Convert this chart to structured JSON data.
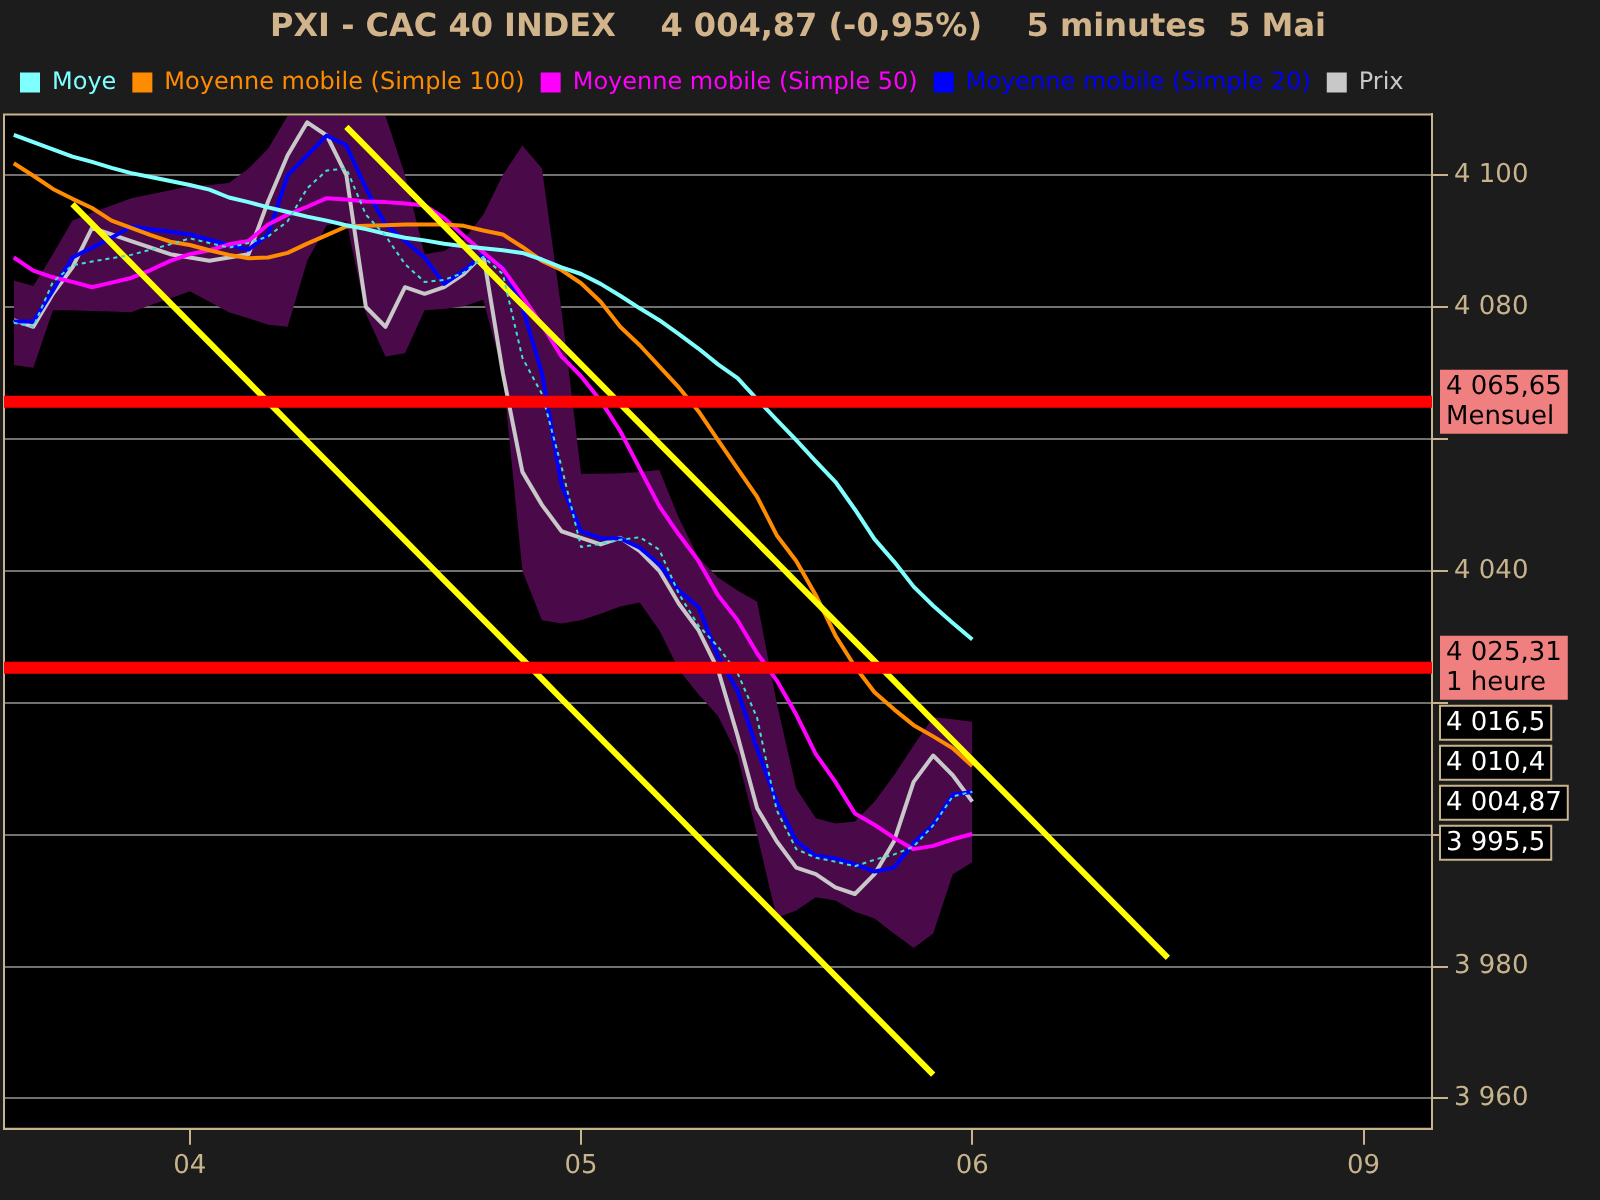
{
  "chart_data": {
    "type": "line",
    "title": "PXI - CAC 40 INDEX    4 004,87 (-0,95%)    5 minutes  5 Mai",
    "categories": [
      null,
      null,
      null,
      null,
      null,
      null,
      null,
      null,
      null,
      "04",
      null,
      null,
      null,
      null,
      null,
      null,
      null,
      null,
      null,
      null,
      null,
      null,
      null,
      null,
      null,
      null,
      null,
      null,
      null,
      "05",
      null,
      null,
      null,
      null,
      null,
      null,
      null,
      null,
      null,
      null,
      null,
      null,
      null,
      null,
      null,
      null,
      null,
      null,
      null,
      "06",
      null,
      null,
      null,
      null,
      null,
      null,
      null,
      null,
      null,
      null,
      null,
      null,
      null,
      null,
      null,
      null,
      null,
      null,
      null,
      "09",
      null,
      null,
      null
    ],
    "ylim": [
      3955.4,
      4109.2
    ],
    "yticks": [
      {
        "value": 3960,
        "label": "3 960"
      },
      {
        "value": 3980,
        "label": "3 980"
      },
      {
        "value": 4000,
        "label": null
      },
      {
        "value": 4020,
        "label": null
      },
      {
        "value": 4040,
        "label": "4 040"
      },
      {
        "value": 4060,
        "label": null
      },
      {
        "value": 4080,
        "label": "4 080"
      },
      {
        "value": 4100,
        "label": "4 100"
      }
    ],
    "grid": "y",
    "legend": "top left",
    "marker": "none",
    "series": [
      {
        "color": "#40e0d0",
        "line_style": "dashed",
        "values": [
          4077.6,
          4077,
          4083.8,
          4086.3,
          4086.9,
          4087.4,
          4087.9,
          4088.7,
          4089.5,
          4090.4,
          4089.7,
          4089,
          4089.7,
          4090.7,
          4093,
          4098,
          4100.7,
          4101,
          4094,
          4090.8,
          4086.5,
          4083.8,
          4084.1,
          4085.2,
          4087.6,
          4085,
          4072.3,
          4066.8,
          4055.8,
          4043.6,
          4044.1,
          4044.7,
          4045.1,
          4043.2,
          4036.5,
          4031.7,
          4028.5,
          4024.5,
          4017.7,
          4003.7,
          3997.8,
          3996.5,
          3995.9,
          3995.2,
          3996.2,
          3997,
          3998.2,
          4001.4,
          4005.8,
          4006.5,
          null,
          null,
          null,
          null,
          null,
          null,
          null,
          null,
          null,
          null,
          null,
          null,
          null,
          null,
          null,
          null,
          null,
          null,
          null,
          null,
          null,
          null,
          null
        ],
        "upper": [
          4084,
          4083.2,
          4088,
          4093.1,
          4094.3,
          4095.4,
          4096.5,
          4097.1,
          4097.7,
          4098.3,
          4098.5,
          4098.8,
          4101,
          4104,
          4109,
          4109,
          4109,
          4109,
          4109,
          4109,
          4100,
          4088,
          4088.5,
          4090.2,
          4094,
          4100,
          4104.5,
          4101,
          4079.5,
          4054.7,
          4054.7,
          4054.8,
          4055,
          4055.3,
          4048,
          4042,
          4039,
          4037,
          4035.3,
          4020,
          4007,
          4002.5,
          4001.7,
          4002,
          4005,
          4009,
          4013.5,
          4017.8,
          4017.5,
          4017.1,
          null,
          null,
          null,
          null,
          null,
          null,
          null,
          null,
          null,
          null,
          null,
          null,
          null,
          null,
          null,
          null,
          null,
          null,
          null,
          null,
          null,
          null,
          null
        ],
        "lower": [
          4071.2,
          4070.8,
          4079.5,
          4079.5,
          4079.4,
          4079.3,
          4079.2,
          4080.3,
          4081.3,
          4082.4,
          4080.8,
          4079.2,
          4078.3,
          4077.3,
          4077,
          4087,
          4092.4,
          4093,
          4079,
          4072.5,
          4073,
          4079.5,
          4079.7,
          4080.1,
          4081.1,
          4070,
          4040,
          4032.5,
          4032,
          4032.5,
          4033.5,
          4034.6,
          4035.2,
          4031,
          4025,
          4021.3,
          4018,
          4012,
          4000,
          3987.4,
          3988.5,
          3990.5,
          3990,
          3988.3,
          3987.3,
          3985,
          3982.8,
          3985,
          3994,
          3995.8,
          null,
          null,
          null,
          null,
          null,
          null,
          null,
          null,
          null,
          null,
          null,
          null,
          null,
          null,
          null,
          null,
          null,
          null,
          null,
          null,
          null,
          null,
          null
        ]
      },
      {
        "name": "Prix",
        "color": "#c8c8c8",
        "values": [
          4078,
          4077,
          4082,
          4086,
          4092,
          4091,
          4090,
          4089,
          4088,
          4087.5,
          4087,
          4087.5,
          4088,
          4096,
          4103,
          4108,
          4106,
          4100,
          4080,
          4077,
          4083,
          4082,
          4083,
          4085,
          4088,
          4070,
          4055,
          4050,
          4046,
          4045,
          4044,
          4045,
          4043,
          4040,
          4035,
          4031,
          4025,
          4015,
          4004,
          3999,
          3995,
          3994,
          3992,
          3991,
          3994,
          3999,
          4008,
          4012,
          4009,
          4005,
          null,
          null,
          null,
          null,
          null,
          null,
          null,
          null,
          null,
          null,
          null,
          null,
          null,
          null,
          null,
          null,
          null,
          null,
          null,
          null,
          null,
          null,
          null
        ]
      },
      {
        "name": "Moyenne mobile (Simple 20)",
        "color": "#0000ff",
        "values": [
          4077.8,
          4077.8,
          4082.5,
          4087.5,
          4089,
          4090.5,
          4092.2,
          4091.8,
          4091.4,
          4091,
          4090.2,
          4089.4,
          4088.7,
          4091,
          4100,
          4103,
          4106,
          4104.5,
          4098,
          4092.5,
          4090,
          4087.5,
          4083.5,
          4085.5,
          4088,
          4086,
          4080,
          4070,
          4053,
          4046,
          4044.9,
          4044.9,
          4043.5,
          4041,
          4037,
          4034.5,
          4027,
          4021.8,
          4013,
          4005,
          3999,
          3996.8,
          3996.4,
          3995.5,
          3994.4,
          3995,
          3998.7,
          4001.5,
          4006,
          4006.5,
          null,
          null,
          null,
          null,
          null,
          null,
          null,
          null,
          null,
          null,
          null,
          null,
          null,
          null,
          null,
          null,
          null,
          null,
          null,
          null,
          null,
          null,
          null
        ]
      },
      {
        "name": "Moyenne mobile (Simple 50)",
        "color": "#ff00ff",
        "values": [
          4087.5,
          4085.5,
          4084.5,
          4083.8,
          4083,
          4083.7,
          4084.4,
          4085.6,
          4087,
          4088,
          4088.6,
          4089.5,
          4090,
          4092.5,
          4094,
          4095.2,
          4096.5,
          4096.3,
          4096,
          4095.9,
          4095.7,
          4095.4,
          4093.5,
          4090.8,
          4088.3,
          4085.8,
          4081.6,
          4077.3,
          4072.5,
          4069.5,
          4065.8,
          4061.2,
          4055.5,
          4049.8,
          4045.5,
          4041.5,
          4036.3,
          4032.5,
          4027.5,
          4023.4,
          4018.2,
          4012.2,
          4008,
          4003.2,
          4001.5,
          3999.5,
          3997.8,
          3998.3,
          3999.3,
          4000.1,
          null,
          null,
          null,
          null,
          null,
          null,
          null,
          null,
          null,
          null,
          null,
          null,
          null,
          null,
          null,
          null,
          null,
          null,
          null,
          null,
          null,
          null,
          null
        ]
      },
      {
        "name": "Moyenne mobile (Simple 100)",
        "color": "#ff8c00",
        "values": [
          4101.8,
          4099.9,
          4097.9,
          4096.4,
          4095,
          4093.1,
          4092,
          4090.9,
          4089.9,
          4089.4,
          4088.6,
          4087.9,
          4087.4,
          4087.5,
          4088.2,
          4089.6,
          4090.9,
          4092.2,
          4092.3,
          4092.4,
          4092.5,
          4092.5,
          4092.5,
          4092.3,
          4091.6,
          4091,
          4089.1,
          4087,
          4085.6,
          4083.6,
          4080.8,
          4077,
          4074.2,
          4071,
          4067.8,
          4064.2,
          4059.8,
          4055.5,
          4051.2,
          4045.4,
          4041.5,
          4036.3,
          4030.2,
          4025.5,
          4021.6,
          4019,
          4016.6,
          4014.9,
          4013.1,
          4010.4,
          null,
          null,
          null,
          null,
          null,
          null,
          null,
          null,
          null,
          null,
          null,
          null,
          null,
          null,
          null,
          null,
          null,
          null,
          null,
          null,
          null,
          null,
          null
        ]
      },
      {
        "name": "Moye",
        "color": "#80ffff",
        "values": [
          4106.1,
          4105,
          4103.9,
          4102.8,
          4102,
          4101.1,
          4100.3,
          4099.7,
          4099.1,
          4098.5,
          4097.8,
          4096.6,
          4095.9,
          4095.1,
          4094.4,
          4093.7,
          4093.1,
          4092.4,
          4091.8,
          4091.1,
          4090.5,
          4090.1,
          4089.6,
          4089.2,
          4088.9,
          4088.6,
          4088.2,
          4087.2,
          4086,
          4085,
          4083.5,
          4081.7,
          4079.8,
          4078,
          4075.9,
          4073.7,
          4071.3,
          4069.2,
          4066,
          4062.9,
          4059.8,
          4056.6,
          4053.5,
          4049.3,
          4044.8,
          4041.4,
          4037.6,
          4034.7,
          4032.1,
          4029.6,
          null,
          null,
          null,
          null,
          null,
          null,
          null,
          null,
          null,
          null,
          null,
          null,
          null,
          null,
          null,
          null,
          null,
          null,
          null,
          null,
          null,
          null,
          null
        ]
      },
      {
        "color": "#ffff00",
        "values": [
          null,
          null,
          null,
          null,
          null,
          null,
          null,
          null,
          null,
          null,
          null,
          null,
          null,
          null,
          null,
          null,
          null,
          4107.3,
          4104.3,
          4101.3,
          4098.3,
          4095.3,
          4092.3,
          4089.3,
          4086.3,
          4083.3,
          4080.3,
          4077.3,
          4074.3,
          4071.3,
          4068.3,
          4065.3,
          4062.3,
          4059.3,
          4056.3,
          4053.3,
          4050.3,
          4047.3,
          4044.3,
          4041.3,
          4038.3,
          4035.3,
          4032.3,
          4029.3,
          4026.3,
          4023.3,
          4020.3,
          4017.3,
          4014.3,
          4011.3,
          4008.3,
          4005.3,
          4002.3,
          3999.3,
          3996.3,
          3993.3,
          3990.3,
          3987.3,
          3984.3,
          3981.3,
          null,
          null,
          null,
          null,
          null,
          null,
          null,
          null,
          null,
          null,
          null,
          null,
          null
        ]
      },
      {
        "color": "#ffff00",
        "values": [
          null,
          null,
          null,
          4095.6,
          4092.6,
          4089.6,
          4086.6,
          4083.6,
          4080.6,
          4077.6,
          4074.6,
          4071.6,
          4068.6,
          4065.6,
          4062.6,
          4059.6,
          4056.6,
          4053.6,
          4050.6,
          4047.6,
          4044.6,
          4041.6,
          4038.6,
          4035.6,
          4032.6,
          4029.6,
          4026.6,
          4023.6,
          4020.6,
          4017.6,
          4014.6,
          4011.6,
          4008.6,
          4005.6,
          4002.6,
          3999.6,
          3996.6,
          3993.6,
          3990.6,
          3987.6,
          3984.6,
          3981.6,
          3978.6,
          3975.6,
          3972.6,
          3969.6,
          3966.6,
          3963.6,
          null,
          null,
          null,
          null,
          null,
          null,
          null,
          null,
          null,
          null,
          null,
          null,
          null,
          null,
          null,
          null,
          null,
          null,
          null,
          null,
          null,
          null,
          null,
          null,
          null
        ]
      }
    ],
    "ref_lines": [
      {
        "axis": "y",
        "value": 4065.65,
        "label": "4 065,65\nMensuel",
        "color": "#ff0000"
      },
      {
        "axis": "y",
        "value": 4025.31,
        "label": "4 025,31\n1 heure",
        "color": "#ff0000"
      }
    ],
    "annotations": [
      "4 016,5",
      "4 010,4",
      "4 004,87",
      "3 995,5"
    ]
  }
}
